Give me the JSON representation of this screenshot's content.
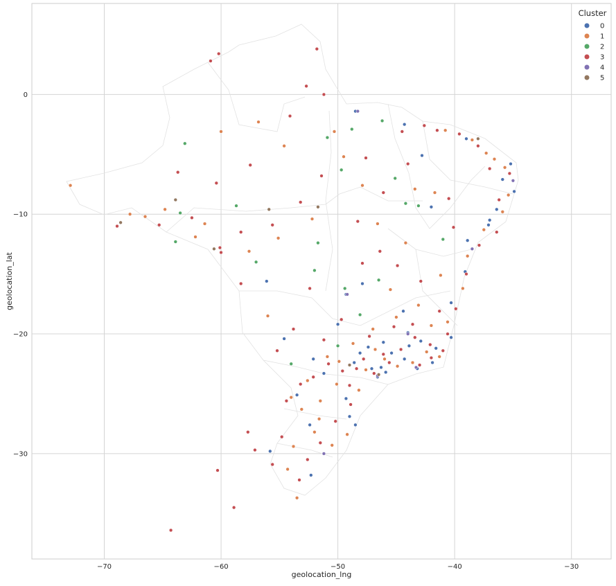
{
  "chart_data": {
    "type": "scatter",
    "title": "",
    "xlabel": "geolocation_lng",
    "ylabel": "geolocation_lat",
    "xlim": [
      -76.2,
      -26.6
    ],
    "ylim": [
      -38.8,
      7.6
    ],
    "xticks": [
      -70,
      -60,
      -50,
      -40,
      -30
    ],
    "yticks": [
      0,
      -10,
      -20,
      -30
    ],
    "grid": true,
    "legend": {
      "title": "Cluster",
      "position": "top-right"
    },
    "series": [
      {
        "name": "0",
        "color": "#4c72b0",
        "values": [
          [
            -35.2,
            -5.8
          ],
          [
            -35.9,
            -7.1
          ],
          [
            -34.9,
            -8.1
          ],
          [
            -36.4,
            -9.6
          ],
          [
            -37.1,
            -10.9
          ],
          [
            -38.5,
            -12.9
          ],
          [
            -39.1,
            -14.8
          ],
          [
            -40.3,
            -17.4
          ],
          [
            -40.3,
            -20.3
          ],
          [
            -41.6,
            -21.2
          ],
          [
            -43.2,
            -22.9
          ],
          [
            -44.3,
            -22.1
          ],
          [
            -45.9,
            -23.2
          ],
          [
            -46.6,
            -23.6
          ],
          [
            -47.1,
            -22.9
          ],
          [
            -48.1,
            -21.6
          ],
          [
            -49.3,
            -25.4
          ],
          [
            -51.2,
            -23.3
          ],
          [
            -49.0,
            -26.9
          ],
          [
            -51.2,
            -30.0
          ],
          [
            -52.4,
            -27.6
          ],
          [
            -53.5,
            -25.1
          ],
          [
            -48.5,
            -27.6
          ],
          [
            -47.9,
            -15.8
          ],
          [
            -49.3,
            -16.7
          ],
          [
            -44.0,
            -19.9
          ],
          [
            -46.1,
            -20.7
          ],
          [
            -39.0,
            -3.7
          ],
          [
            -42.8,
            -5.1
          ],
          [
            -44.3,
            -2.5
          ],
          [
            -48.5,
            -1.4
          ],
          [
            -60.0,
            -3.1
          ],
          [
            -63.9,
            -8.8
          ],
          [
            -56.1,
            -15.6
          ],
          [
            -54.6,
            -20.4
          ],
          [
            -55.8,
            -29.8
          ],
          [
            -52.3,
            -31.8
          ],
          [
            -42.0,
            -9.4
          ],
          [
            -37.0,
            -10.5
          ],
          [
            -38.9,
            -12.2
          ],
          [
            -44.4,
            -18.1
          ],
          [
            -50.0,
            -19.2
          ],
          [
            -52.1,
            -22.1
          ],
          [
            -47.4,
            -21.1
          ],
          [
            -45.4,
            -21.6
          ],
          [
            -43.9,
            -21.0
          ],
          [
            -42.9,
            -20.6
          ],
          [
            -41.9,
            -22.4
          ],
          [
            -46.3,
            -22.8
          ],
          [
            -48.6,
            -22.4
          ]
        ]
      },
      {
        "name": "1",
        "color": "#dd8452",
        "values": [
          [
            -35.7,
            -6.1
          ],
          [
            -36.6,
            -5.4
          ],
          [
            -37.3,
            -4.9
          ],
          [
            -38.5,
            -3.8
          ],
          [
            -40.8,
            -3.0
          ],
          [
            -35.4,
            -8.4
          ],
          [
            -35.9,
            -9.8
          ],
          [
            -37.5,
            -11.3
          ],
          [
            -38.9,
            -13.5
          ],
          [
            -39.3,
            -16.2
          ],
          [
            -40.6,
            -19.0
          ],
          [
            -42.4,
            -21.5
          ],
          [
            -43.6,
            -22.4
          ],
          [
            -44.9,
            -22.7
          ],
          [
            -46.0,
            -22.1
          ],
          [
            -47.6,
            -23.0
          ],
          [
            -48.2,
            -24.7
          ],
          [
            -50.1,
            -24.2
          ],
          [
            -51.5,
            -25.6
          ],
          [
            -53.1,
            -26.3
          ],
          [
            -52.0,
            -28.2
          ],
          [
            -53.8,
            -29.4
          ],
          [
            -50.5,
            -29.3
          ],
          [
            -54.3,
            -31.3
          ],
          [
            -53.5,
            -33.7
          ],
          [
            -49.9,
            -22.3
          ],
          [
            -47.0,
            -19.6
          ],
          [
            -45.0,
            -18.6
          ],
          [
            -43.1,
            -17.6
          ],
          [
            -41.2,
            -15.1
          ],
          [
            -44.2,
            -12.4
          ],
          [
            -46.6,
            -10.8
          ],
          [
            -47.9,
            -7.6
          ],
          [
            -49.5,
            -5.2
          ],
          [
            -50.3,
            -3.1
          ],
          [
            -43.4,
            -7.9
          ],
          [
            -41.7,
            -8.2
          ],
          [
            -55.1,
            -12.0
          ],
          [
            -56.0,
            -18.5
          ],
          [
            -57.6,
            -13.1
          ],
          [
            -61.4,
            -10.8
          ],
          [
            -62.2,
            -11.9
          ],
          [
            -64.8,
            -9.6
          ],
          [
            -66.5,
            -10.2
          ],
          [
            -72.9,
            -7.6
          ],
          [
            -67.8,
            -10.0
          ],
          [
            -60.0,
            -3.1
          ],
          [
            -56.8,
            -2.3
          ],
          [
            -54.6,
            -4.3
          ],
          [
            -52.2,
            -10.4
          ],
          [
            -45.5,
            -16.3
          ],
          [
            -42.0,
            -19.3
          ],
          [
            -41.3,
            -21.9
          ],
          [
            -46.8,
            -21.3
          ],
          [
            -48.7,
            -20.8
          ],
          [
            -50.9,
            -21.9
          ],
          [
            -52.6,
            -23.9
          ],
          [
            -54.0,
            -25.3
          ],
          [
            -49.2,
            -28.4
          ],
          [
            -51.6,
            -27.1
          ]
        ]
      },
      {
        "name": "2",
        "color": "#55a868",
        "values": [
          [
            -63.1,
            -4.1
          ],
          [
            -48.8,
            -2.9
          ],
          [
            -46.2,
            -2.2
          ],
          [
            -50.9,
            -3.6
          ],
          [
            -45.1,
            -7.0
          ],
          [
            -44.2,
            -9.1
          ],
          [
            -43.1,
            -9.3
          ],
          [
            -49.7,
            -6.3
          ],
          [
            -58.7,
            -9.3
          ],
          [
            -63.9,
            -12.3
          ],
          [
            -63.5,
            -9.9
          ],
          [
            -51.7,
            -12.4
          ],
          [
            -49.4,
            -16.2
          ],
          [
            -48.1,
            -18.4
          ],
          [
            -54.0,
            -22.5
          ],
          [
            -57.0,
            -14.0
          ],
          [
            -50.0,
            -21.0
          ],
          [
            -46.5,
            -15.5
          ],
          [
            -41.0,
            -12.1
          ],
          [
            -52.0,
            -14.7
          ]
        ]
      },
      {
        "name": "3",
        "color": "#c44e52",
        "values": [
          [
            -35.3,
            -6.6
          ],
          [
            -36.2,
            -8.8
          ],
          [
            -37.0,
            -6.2
          ],
          [
            -38.0,
            -4.3
          ],
          [
            -39.6,
            -3.3
          ],
          [
            -41.5,
            -3.0
          ],
          [
            -42.6,
            -2.6
          ],
          [
            -44.5,
            -3.1
          ],
          [
            -36.4,
            -11.5
          ],
          [
            -37.9,
            -12.6
          ],
          [
            -39.0,
            -15.0
          ],
          [
            -39.9,
            -17.9
          ],
          [
            -40.6,
            -20.0
          ],
          [
            -42.0,
            -22.0
          ],
          [
            -43.0,
            -22.6
          ],
          [
            -44.6,
            -21.3
          ],
          [
            -45.6,
            -22.4
          ],
          [
            -46.9,
            -23.3
          ],
          [
            -48.4,
            -22.9
          ],
          [
            -49.6,
            -23.1
          ],
          [
            -50.8,
            -22.5
          ],
          [
            -52.1,
            -23.6
          ],
          [
            -53.2,
            -24.2
          ],
          [
            -54.4,
            -25.6
          ],
          [
            -48.9,
            -25.9
          ],
          [
            -50.2,
            -27.3
          ],
          [
            -51.5,
            -29.1
          ],
          [
            -52.6,
            -30.5
          ],
          [
            -53.3,
            -32.2
          ],
          [
            -55.6,
            -30.9
          ],
          [
            -57.1,
            -29.7
          ],
          [
            -54.8,
            -28.6
          ],
          [
            -47.3,
            -20.2
          ],
          [
            -45.2,
            -19.4
          ],
          [
            -43.6,
            -19.2
          ],
          [
            -41.3,
            -18.1
          ],
          [
            -42.9,
            -15.6
          ],
          [
            -44.9,
            -14.3
          ],
          [
            -46.4,
            -13.1
          ],
          [
            -48.3,
            -10.6
          ],
          [
            -47.6,
            -5.3
          ],
          [
            -51.4,
            -6.8
          ],
          [
            -53.2,
            -9.0
          ],
          [
            -55.6,
            -10.9
          ],
          [
            -58.3,
            -11.5
          ],
          [
            -60.1,
            -12.8
          ],
          [
            -62.5,
            -10.3
          ],
          [
            -65.3,
            -10.9
          ],
          [
            -68.9,
            -11.0
          ],
          [
            -63.7,
            -6.5
          ],
          [
            -60.4,
            -7.4
          ],
          [
            -57.5,
            -5.9
          ],
          [
            -54.1,
            -1.8
          ],
          [
            -52.7,
            0.7
          ],
          [
            -51.2,
            0.0
          ],
          [
            -51.8,
            3.8
          ],
          [
            -60.9,
            2.8
          ],
          [
            -60.2,
            3.4
          ],
          [
            -64.3,
            -36.4
          ],
          [
            -60.3,
            -31.4
          ],
          [
            -58.9,
            -34.5
          ],
          [
            -57.7,
            -28.2
          ],
          [
            -47.9,
            -14.1
          ],
          [
            -52.4,
            -16.2
          ],
          [
            -58.3,
            -15.8
          ],
          [
            -60.0,
            -13.2
          ],
          [
            -40.5,
            -8.7
          ],
          [
            -44.0,
            -5.8
          ],
          [
            -46.1,
            -8.2
          ],
          [
            -40.1,
            -11.1
          ],
          [
            -49.7,
            -18.8
          ],
          [
            -53.8,
            -19.6
          ],
          [
            -55.2,
            -21.4
          ],
          [
            -51.2,
            -20.5
          ],
          [
            -46.1,
            -21.7
          ],
          [
            -43.4,
            -20.3
          ],
          [
            -42.1,
            -20.9
          ],
          [
            -41.0,
            -21.4
          ],
          [
            -47.8,
            -22.1
          ],
          [
            -49.0,
            -24.3
          ]
        ]
      },
      {
        "name": "4",
        "color": "#8172b3",
        "values": [
          [
            -46.6,
            -23.5
          ],
          [
            -43.3,
            -22.8
          ],
          [
            -49.2,
            -16.7
          ],
          [
            -38.5,
            -12.9
          ],
          [
            -51.2,
            -30.0
          ],
          [
            -35.0,
            -7.2
          ],
          [
            -48.3,
            -1.4
          ],
          [
            -44.0,
            -20.0
          ]
        ]
      },
      {
        "name": "5",
        "color": "#937860",
        "values": [
          [
            -68.6,
            -10.7
          ],
          [
            -63.9,
            -8.8
          ],
          [
            -51.7,
            -9.4
          ],
          [
            -60.6,
            -12.9
          ],
          [
            -49.0,
            -22.6
          ],
          [
            -38.0,
            -3.7
          ],
          [
            -46.5,
            -23.4
          ],
          [
            -55.9,
            -9.6
          ]
        ]
      }
    ]
  }
}
